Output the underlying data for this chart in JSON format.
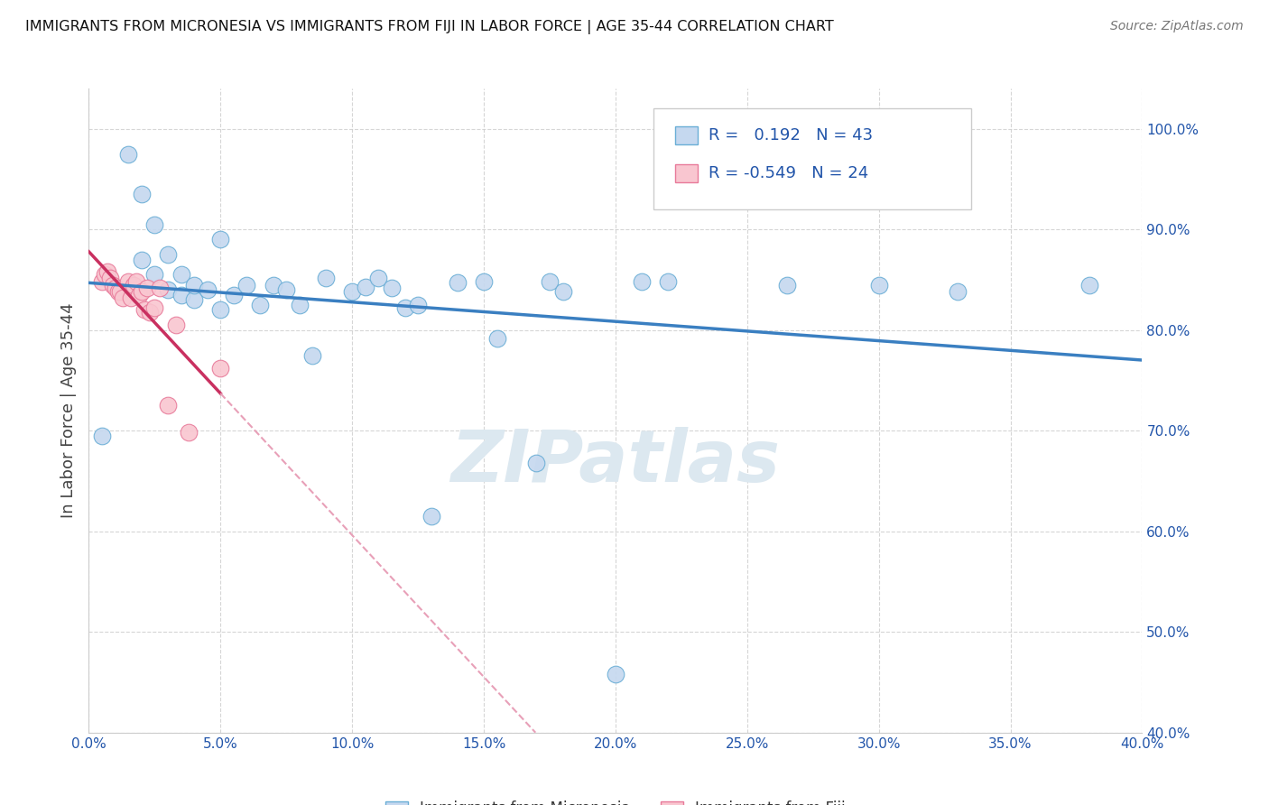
{
  "title": "IMMIGRANTS FROM MICRONESIA VS IMMIGRANTS FROM FIJI IN LABOR FORCE | AGE 35-44 CORRELATION CHART",
  "source_text": "Source: ZipAtlas.com",
  "ylabel": "In Labor Force | Age 35-44",
  "xlim": [
    0.0,
    0.4
  ],
  "ylim": [
    0.4,
    1.04
  ],
  "xticks": [
    0.0,
    0.05,
    0.1,
    0.15,
    0.2,
    0.25,
    0.3,
    0.35,
    0.4
  ],
  "yticks": [
    0.4,
    0.5,
    0.6,
    0.7,
    0.8,
    0.9,
    1.0
  ],
  "ytick_labels": [
    "40.0%",
    "50.0%",
    "60.0%",
    "70.0%",
    "80.0%",
    "90.0%",
    "100.0%"
  ],
  "xtick_labels": [
    "0.0%",
    "5.0%",
    "10.0%",
    "15.0%",
    "20.0%",
    "25.0%",
    "30.0%",
    "35.0%",
    "40.0%"
  ],
  "r_micronesia": 0.192,
  "n_micronesia": 43,
  "r_fiji": -0.549,
  "n_fiji": 24,
  "color_micronesia_fill": "#c5d8ef",
  "color_micronesia_edge": "#6aaed6",
  "color_fiji_fill": "#f9c6d0",
  "color_fiji_edge": "#e87a9a",
  "color_micronesia_line": "#3a7fc1",
  "color_fiji_line_solid": "#c93060",
  "color_fiji_line_dashed": "#e8a0b8",
  "watermark_text": "ZIPatlas",
  "watermark_color": "#dce8f0",
  "axis_label_color": "#2255aa",
  "grid_color": "#cccccc",
  "micronesia_x": [
    0.005,
    0.015,
    0.02,
    0.02,
    0.025,
    0.025,
    0.03,
    0.03,
    0.035,
    0.035,
    0.04,
    0.04,
    0.045,
    0.05,
    0.05,
    0.055,
    0.06,
    0.065,
    0.07,
    0.075,
    0.08,
    0.085,
    0.09,
    0.1,
    0.105,
    0.11,
    0.115,
    0.12,
    0.125,
    0.13,
    0.14,
    0.15,
    0.155,
    0.17,
    0.175,
    0.18,
    0.2,
    0.21,
    0.22,
    0.265,
    0.3,
    0.33,
    0.38
  ],
  "micronesia_y": [
    0.695,
    0.975,
    0.87,
    0.935,
    0.855,
    0.905,
    0.84,
    0.875,
    0.835,
    0.855,
    0.83,
    0.845,
    0.84,
    0.82,
    0.89,
    0.835,
    0.845,
    0.825,
    0.845,
    0.84,
    0.825,
    0.775,
    0.852,
    0.838,
    0.843,
    0.852,
    0.842,
    0.822,
    0.825,
    0.615,
    0.847,
    0.848,
    0.792,
    0.668,
    0.848,
    0.838,
    0.458,
    0.848,
    0.848,
    0.845,
    0.845,
    0.838,
    0.845
  ],
  "fiji_x": [
    0.005,
    0.006,
    0.007,
    0.008,
    0.009,
    0.01,
    0.011,
    0.012,
    0.013,
    0.015,
    0.016,
    0.017,
    0.018,
    0.019,
    0.02,
    0.021,
    0.022,
    0.023,
    0.025,
    0.027,
    0.03,
    0.033,
    0.038,
    0.05
  ],
  "fiji_y": [
    0.848,
    0.855,
    0.858,
    0.852,
    0.845,
    0.842,
    0.838,
    0.838,
    0.832,
    0.848,
    0.832,
    0.845,
    0.848,
    0.835,
    0.838,
    0.82,
    0.842,
    0.818,
    0.822,
    0.842,
    0.725,
    0.805,
    0.698,
    0.762
  ],
  "legend_label_micronesia": "Immigrants from Micronesia",
  "legend_label_fiji": "Immigrants from Fiji",
  "background_color": "#ffffff"
}
